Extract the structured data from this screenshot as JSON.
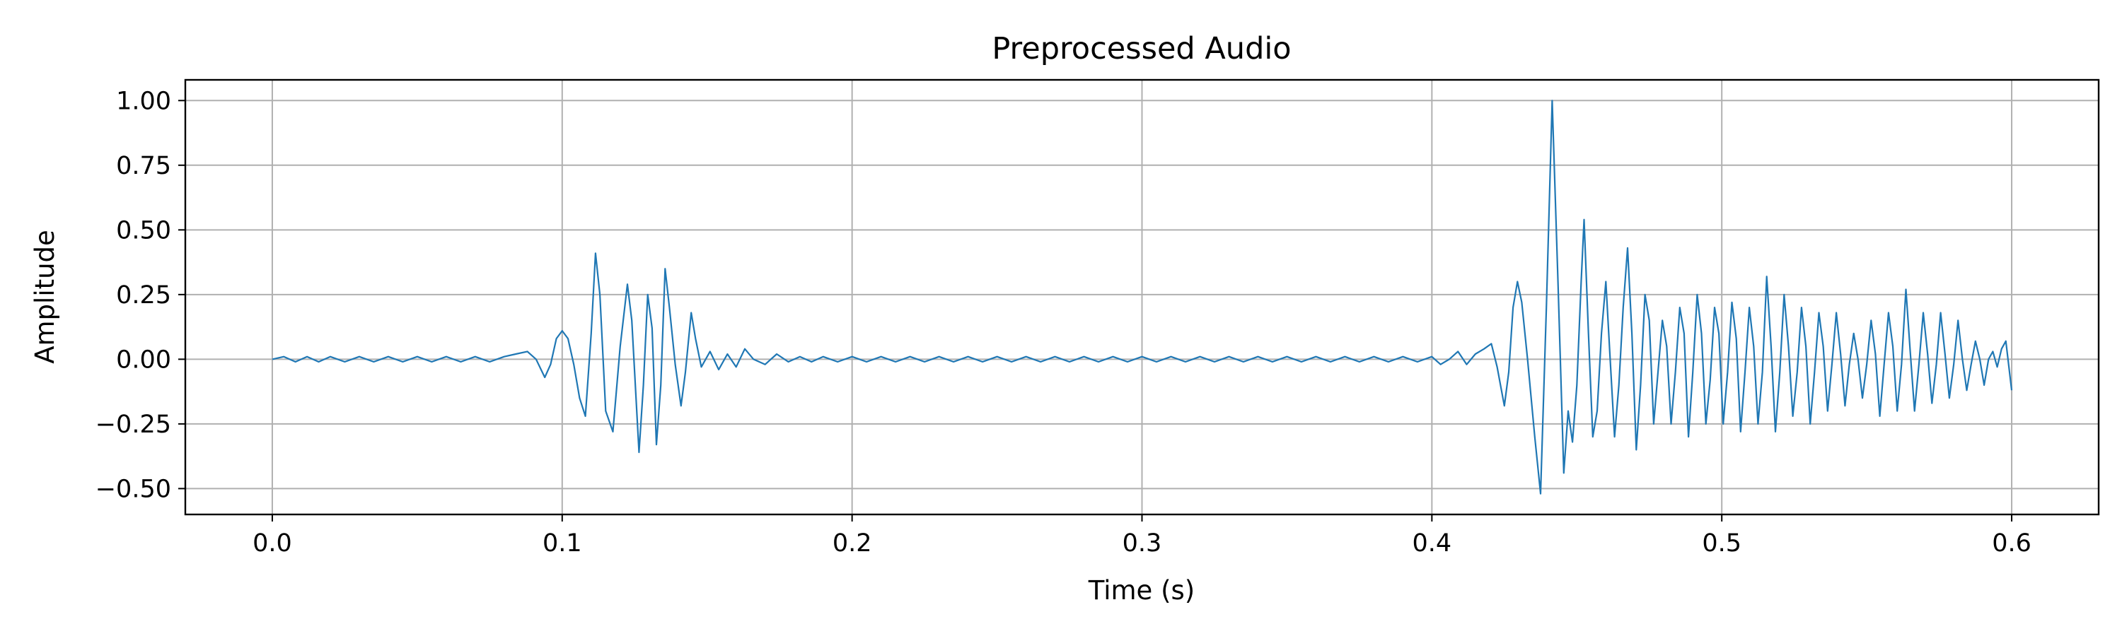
{
  "chart_data": {
    "type": "line",
    "title": "Preprocessed Audio",
    "xlabel": "Time (s)",
    "ylabel": "Amplitude",
    "xlim": [
      -0.03,
      0.63
    ],
    "ylim": [
      -0.6,
      1.08
    ],
    "xticks": [
      0.0,
      0.1,
      0.2,
      0.3,
      0.4,
      0.5,
      0.6
    ],
    "xtick_labels": [
      "0.0",
      "0.1",
      "0.2",
      "0.3",
      "0.4",
      "0.5",
      "0.6"
    ],
    "yticks": [
      -0.5,
      -0.25,
      0.0,
      0.25,
      0.5,
      0.75,
      1.0
    ],
    "ytick_labels": [
      "−0.50",
      "−0.25",
      "0.00",
      "0.25",
      "0.50",
      "0.75",
      "1.00"
    ],
    "grid": true,
    "line_color": "#1f77b4",
    "series": [
      {
        "points": [
          [
            0.0,
            0.0
          ],
          [
            0.004,
            0.01
          ],
          [
            0.008,
            -0.01
          ],
          [
            0.012,
            0.01
          ],
          [
            0.016,
            -0.01
          ],
          [
            0.02,
            0.01
          ],
          [
            0.025,
            -0.01
          ],
          [
            0.03,
            0.01
          ],
          [
            0.035,
            -0.01
          ],
          [
            0.04,
            0.01
          ],
          [
            0.045,
            -0.01
          ],
          [
            0.05,
            0.01
          ],
          [
            0.055,
            -0.01
          ],
          [
            0.06,
            0.01
          ],
          [
            0.065,
            -0.01
          ],
          [
            0.07,
            0.01
          ],
          [
            0.075,
            -0.01
          ],
          [
            0.08,
            0.01
          ],
          [
            0.084,
            0.02
          ],
          [
            0.088,
            0.03
          ],
          [
            0.091,
            0.0
          ],
          [
            0.094,
            -0.07
          ],
          [
            0.096,
            -0.02
          ],
          [
            0.098,
            0.08
          ],
          [
            0.1,
            0.11
          ],
          [
            0.102,
            0.08
          ],
          [
            0.104,
            -0.02
          ],
          [
            0.106,
            -0.15
          ],
          [
            0.108,
            -0.22
          ],
          [
            0.11,
            0.1
          ],
          [
            0.1115,
            0.41
          ],
          [
            0.113,
            0.25
          ],
          [
            0.115,
            -0.2
          ],
          [
            0.1175,
            -0.28
          ],
          [
            0.12,
            0.05
          ],
          [
            0.1225,
            0.29
          ],
          [
            0.124,
            0.15
          ],
          [
            0.1265,
            -0.36
          ],
          [
            0.128,
            -0.1
          ],
          [
            0.1295,
            0.25
          ],
          [
            0.131,
            0.12
          ],
          [
            0.1325,
            -0.33
          ],
          [
            0.134,
            -0.1
          ],
          [
            0.1355,
            0.35
          ],
          [
            0.137,
            0.2
          ],
          [
            0.139,
            -0.02
          ],
          [
            0.141,
            -0.18
          ],
          [
            0.1425,
            -0.05
          ],
          [
            0.1445,
            0.18
          ],
          [
            0.146,
            0.08
          ],
          [
            0.148,
            -0.03
          ],
          [
            0.151,
            0.03
          ],
          [
            0.154,
            -0.04
          ],
          [
            0.157,
            0.02
          ],
          [
            0.16,
            -0.03
          ],
          [
            0.163,
            0.04
          ],
          [
            0.166,
            0.0
          ],
          [
            0.17,
            -0.02
          ],
          [
            0.174,
            0.02
          ],
          [
            0.178,
            -0.01
          ],
          [
            0.182,
            0.01
          ],
          [
            0.186,
            -0.01
          ],
          [
            0.19,
            0.01
          ],
          [
            0.195,
            -0.01
          ],
          [
            0.2,
            0.01
          ],
          [
            0.205,
            -0.01
          ],
          [
            0.21,
            0.01
          ],
          [
            0.215,
            -0.01
          ],
          [
            0.22,
            0.01
          ],
          [
            0.225,
            -0.01
          ],
          [
            0.23,
            0.01
          ],
          [
            0.235,
            -0.01
          ],
          [
            0.24,
            0.01
          ],
          [
            0.245,
            -0.01
          ],
          [
            0.25,
            0.01
          ],
          [
            0.255,
            -0.01
          ],
          [
            0.26,
            0.01
          ],
          [
            0.265,
            -0.01
          ],
          [
            0.27,
            0.01
          ],
          [
            0.275,
            -0.01
          ],
          [
            0.28,
            0.01
          ],
          [
            0.285,
            -0.01
          ],
          [
            0.29,
            0.01
          ],
          [
            0.295,
            -0.01
          ],
          [
            0.3,
            0.01
          ],
          [
            0.305,
            -0.01
          ],
          [
            0.31,
            0.01
          ],
          [
            0.315,
            -0.01
          ],
          [
            0.32,
            0.01
          ],
          [
            0.325,
            -0.01
          ],
          [
            0.33,
            0.01
          ],
          [
            0.335,
            -0.01
          ],
          [
            0.34,
            0.01
          ],
          [
            0.345,
            -0.01
          ],
          [
            0.35,
            0.01
          ],
          [
            0.355,
            -0.01
          ],
          [
            0.36,
            0.01
          ],
          [
            0.365,
            -0.01
          ],
          [
            0.37,
            0.01
          ],
          [
            0.375,
            -0.01
          ],
          [
            0.38,
            0.01
          ],
          [
            0.385,
            -0.01
          ],
          [
            0.39,
            0.01
          ],
          [
            0.395,
            -0.01
          ],
          [
            0.4,
            0.01
          ],
          [
            0.403,
            -0.02
          ],
          [
            0.406,
            0.0
          ],
          [
            0.409,
            0.03
          ],
          [
            0.412,
            -0.02
          ],
          [
            0.415,
            0.02
          ],
          [
            0.418,
            0.04
          ],
          [
            0.4205,
            0.06
          ],
          [
            0.4225,
            -0.03
          ],
          [
            0.424,
            -0.12
          ],
          [
            0.425,
            -0.18
          ],
          [
            0.4265,
            -0.05
          ],
          [
            0.428,
            0.2
          ],
          [
            0.4295,
            0.3
          ],
          [
            0.431,
            0.22
          ],
          [
            0.433,
            0.0
          ],
          [
            0.4355,
            -0.3
          ],
          [
            0.4375,
            -0.52
          ],
          [
            0.4395,
            0.2
          ],
          [
            0.4415,
            1.0
          ],
          [
            0.4435,
            0.3
          ],
          [
            0.4455,
            -0.44
          ],
          [
            0.447,
            -0.2
          ],
          [
            0.4485,
            -0.32
          ],
          [
            0.45,
            -0.1
          ],
          [
            0.4515,
            0.3
          ],
          [
            0.4525,
            0.54
          ],
          [
            0.454,
            0.1
          ],
          [
            0.4555,
            -0.3
          ],
          [
            0.457,
            -0.2
          ],
          [
            0.4585,
            0.1
          ],
          [
            0.46,
            0.3
          ],
          [
            0.4615,
            0.0
          ],
          [
            0.463,
            -0.3
          ],
          [
            0.4645,
            -0.1
          ],
          [
            0.466,
            0.2
          ],
          [
            0.4675,
            0.43
          ],
          [
            0.469,
            0.1
          ],
          [
            0.4705,
            -0.35
          ],
          [
            0.472,
            -0.1
          ],
          [
            0.4735,
            0.25
          ],
          [
            0.475,
            0.15
          ],
          [
            0.4765,
            -0.25
          ],
          [
            0.478,
            -0.05
          ],
          [
            0.4795,
            0.15
          ],
          [
            0.481,
            0.05
          ],
          [
            0.4825,
            -0.25
          ],
          [
            0.484,
            -0.05
          ],
          [
            0.4855,
            0.2
          ],
          [
            0.487,
            0.1
          ],
          [
            0.4885,
            -0.3
          ],
          [
            0.49,
            -0.05
          ],
          [
            0.4915,
            0.25
          ],
          [
            0.493,
            0.1
          ],
          [
            0.4945,
            -0.25
          ],
          [
            0.496,
            -0.08
          ],
          [
            0.4975,
            0.2
          ],
          [
            0.499,
            0.1
          ],
          [
            0.5005,
            -0.25
          ],
          [
            0.502,
            -0.05
          ],
          [
            0.5035,
            0.22
          ],
          [
            0.505,
            0.08
          ],
          [
            0.5065,
            -0.28
          ],
          [
            0.508,
            -0.05
          ],
          [
            0.5095,
            0.2
          ],
          [
            0.511,
            0.05
          ],
          [
            0.5125,
            -0.25
          ],
          [
            0.514,
            -0.05
          ],
          [
            0.5155,
            0.32
          ],
          [
            0.517,
            0.05
          ],
          [
            0.5185,
            -0.28
          ],
          [
            0.52,
            -0.05
          ],
          [
            0.5215,
            0.25
          ],
          [
            0.523,
            0.05
          ],
          [
            0.5245,
            -0.22
          ],
          [
            0.526,
            -0.05
          ],
          [
            0.5275,
            0.2
          ],
          [
            0.529,
            0.05
          ],
          [
            0.5305,
            -0.25
          ],
          [
            0.532,
            -0.05
          ],
          [
            0.5335,
            0.18
          ],
          [
            0.535,
            0.05
          ],
          [
            0.5365,
            -0.2
          ],
          [
            0.538,
            -0.02
          ],
          [
            0.5395,
            0.18
          ],
          [
            0.541,
            0.02
          ],
          [
            0.5425,
            -0.18
          ],
          [
            0.544,
            -0.02
          ],
          [
            0.5455,
            0.1
          ],
          [
            0.547,
            0.0
          ],
          [
            0.5485,
            -0.15
          ],
          [
            0.55,
            -0.02
          ],
          [
            0.5515,
            0.15
          ],
          [
            0.553,
            0.02
          ],
          [
            0.5545,
            -0.22
          ],
          [
            0.556,
            -0.02
          ],
          [
            0.5575,
            0.18
          ],
          [
            0.559,
            0.05
          ],
          [
            0.5605,
            -0.2
          ],
          [
            0.562,
            -0.02
          ],
          [
            0.5635,
            0.27
          ],
          [
            0.565,
            0.03
          ],
          [
            0.5665,
            -0.2
          ],
          [
            0.568,
            -0.02
          ],
          [
            0.5695,
            0.18
          ],
          [
            0.571,
            0.02
          ],
          [
            0.5725,
            -0.17
          ],
          [
            0.574,
            -0.02
          ],
          [
            0.5755,
            0.18
          ],
          [
            0.577,
            0.02
          ],
          [
            0.5785,
            -0.15
          ],
          [
            0.58,
            -0.02
          ],
          [
            0.5815,
            0.15
          ],
          [
            0.583,
            0.0
          ],
          [
            0.5845,
            -0.12
          ],
          [
            0.586,
            -0.02
          ],
          [
            0.5875,
            0.07
          ],
          [
            0.589,
            0.0
          ],
          [
            0.5905,
            -0.1
          ],
          [
            0.592,
            0.0
          ],
          [
            0.5935,
            0.03
          ],
          [
            0.595,
            -0.03
          ],
          [
            0.5965,
            0.04
          ],
          [
            0.598,
            0.07
          ],
          [
            0.6,
            -0.12
          ]
        ]
      }
    ]
  }
}
